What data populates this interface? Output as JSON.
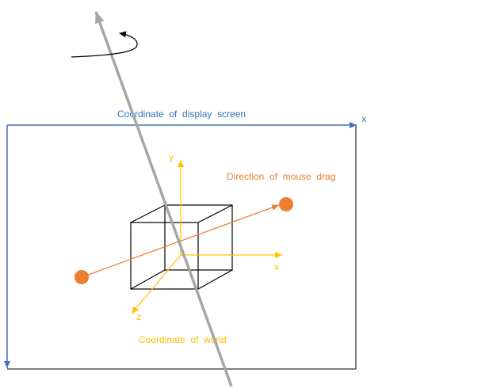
{
  "labels": {
    "screen_coordinate": "Coordinate  of  display  screen",
    "screen_x_axis": "x",
    "world_coordinate": "Coordinate  of  world",
    "mouse_drag_direction": "Direction  of  mouse  drag",
    "world_x_axis": "x",
    "world_y_axis": "y",
    "world_z_axis": "z"
  },
  "colors": {
    "screen_frame": "#4472c4",
    "screen_text": "#2e75b6",
    "world_axes": "#ffc000",
    "world_text": "#ffc000",
    "mouse_drag": "#ed7d31",
    "rotation_axis": "#a6a6a6",
    "cube": "#000000",
    "rotation_arrow": "#000000"
  },
  "icons": {
    "rotation_arrow": "curved-rotation-arrow-icon",
    "drag_endpoint": "orange-circle-icon"
  }
}
